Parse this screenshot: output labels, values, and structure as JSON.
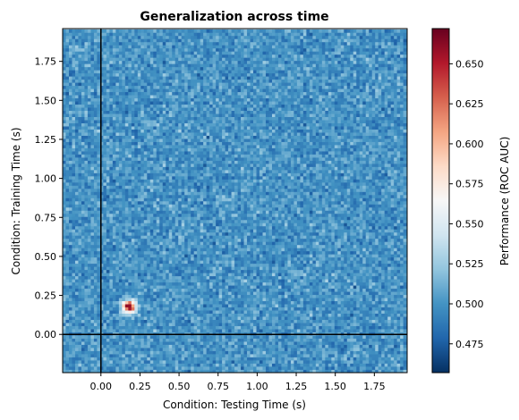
{
  "chart_data": {
    "type": "heatmap",
    "title": "Generalization across time",
    "xlabel": "Condition: Testing Time (s)",
    "ylabel": "Condition: Training Time (s)",
    "colorbar_label": "Performance (ROC AUC)",
    "colormap": "RdBu_r",
    "xlim": [
      -0.245,
      1.96
    ],
    "ylim": [
      -0.245,
      1.96
    ],
    "vmin": 0.457,
    "vmax": 0.672,
    "grid": false,
    "x_ticks": [
      0.0,
      0.25,
      0.5,
      0.75,
      1.0,
      1.25,
      1.5,
      1.75
    ],
    "x_tick_labels": [
      "0.00",
      "0.25",
      "0.50",
      "0.75",
      "1.00",
      "1.25",
      "1.50",
      "1.75"
    ],
    "y_ticks": [
      0.0,
      0.25,
      0.5,
      0.75,
      1.0,
      1.25,
      1.5,
      1.75
    ],
    "y_tick_labels": [
      "0.00",
      "0.25",
      "0.50",
      "0.75",
      "1.00",
      "1.25",
      "1.50",
      "1.75"
    ],
    "colorbar_ticks": [
      0.475,
      0.5,
      0.525,
      0.55,
      0.575,
      0.6,
      0.625,
      0.65
    ],
    "colorbar_tick_labels": [
      "0.475",
      "0.500",
      "0.525",
      "0.550",
      "0.575",
      "0.600",
      "0.625",
      "0.650"
    ],
    "reference_lines": {
      "vertical_at_x": 0.0,
      "horizontal_at_y": 0.0,
      "color": "#000000"
    },
    "grid_resolution_s": 0.02,
    "background_level": 0.5,
    "background_noise": 0.02,
    "hotspot": {
      "x": 0.18,
      "y": 0.18,
      "peak": 0.67,
      "radius_s": 0.06
    }
  }
}
